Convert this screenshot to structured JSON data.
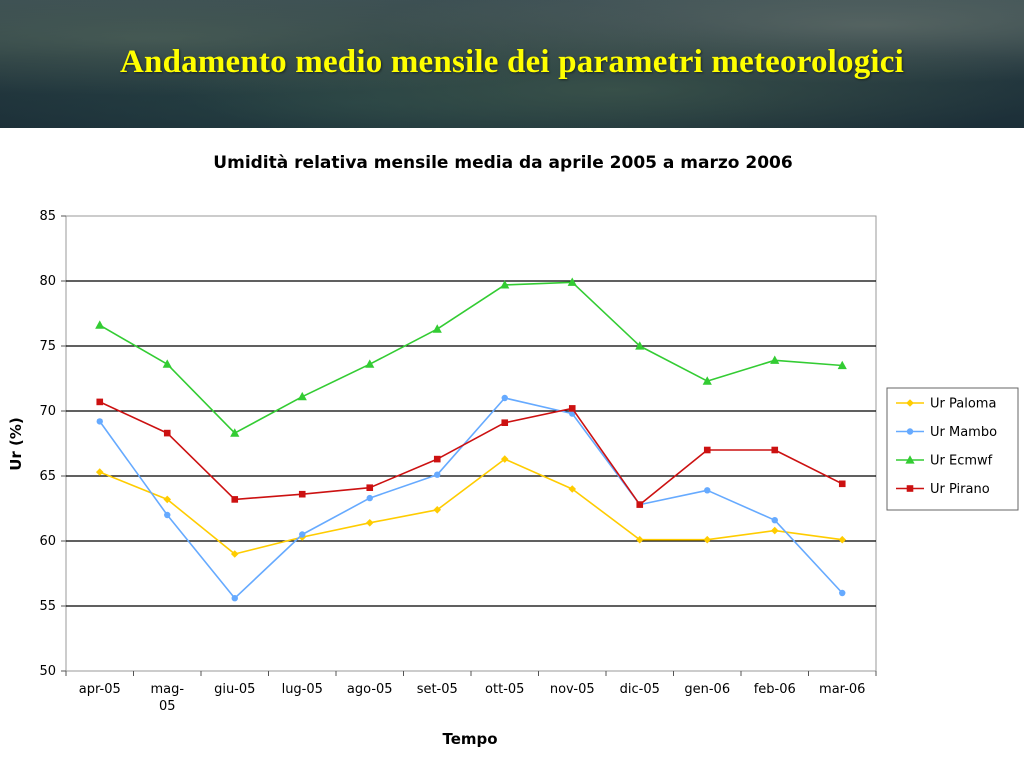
{
  "header": {
    "title": "Andamento medio mensile dei parametri meteorologici"
  },
  "chart_data": {
    "type": "line",
    "title": "Umidità relativa mensile media da aprile 2005 a marzo 2006",
    "xlabel": "Tempo",
    "ylabel": "Ur (%)",
    "ylim": [
      50,
      85
    ],
    "yticks": [
      "50",
      "55",
      "60",
      "65",
      "70",
      "75",
      "80",
      "85"
    ],
    "grid": true,
    "legend_position": "right",
    "categories": [
      [
        "apr-05"
      ],
      [
        "mag-",
        "05"
      ],
      [
        "giu-05"
      ],
      [
        "lug-05"
      ],
      [
        "ago-05"
      ],
      [
        "set-05"
      ],
      [
        "ott-05"
      ],
      [
        "nov-05"
      ],
      [
        "dic-05"
      ],
      [
        "gen-06"
      ],
      [
        "feb-06"
      ],
      [
        "mar-06"
      ]
    ],
    "series": [
      {
        "name": "Ur Paloma",
        "color": "#ffcc00",
        "marker": "diamond",
        "values": [
          65.3,
          63.2,
          59.0,
          60.3,
          61.4,
          62.4,
          66.3,
          64.0,
          60.1,
          60.1,
          60.8,
          60.1
        ]
      },
      {
        "name": "Ur Mambo",
        "color": "#66aaff",
        "marker": "circle",
        "values": [
          69.2,
          62.0,
          55.6,
          60.5,
          63.3,
          65.1,
          71.0,
          69.8,
          62.8,
          63.9,
          61.6,
          56.0
        ]
      },
      {
        "name": "Ur Ecmwf",
        "color": "#33cc33",
        "marker": "triangle",
        "values": [
          76.6,
          73.6,
          68.3,
          71.1,
          73.6,
          76.3,
          79.7,
          79.9,
          75.0,
          72.3,
          73.9,
          73.5
        ]
      },
      {
        "name": "Ur Pirano",
        "color": "#cc1111",
        "marker": "square",
        "values": [
          70.7,
          68.3,
          63.2,
          63.6,
          64.1,
          66.3,
          69.1,
          70.2,
          62.8,
          67.0,
          67.0,
          64.4
        ]
      }
    ]
  }
}
